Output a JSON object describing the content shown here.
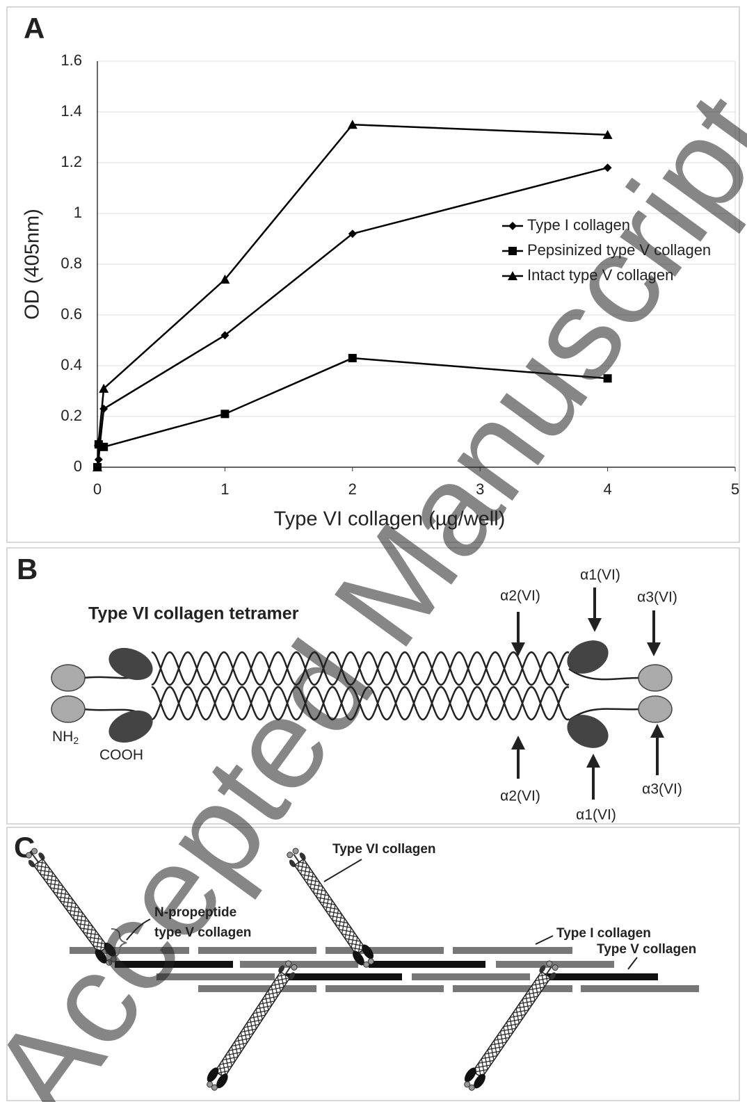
{
  "chart_data": {
    "type": "line",
    "panel_label": "A",
    "xlabel": "Type VI collagen (µg/well)",
    "ylabel": "OD (405nm)",
    "xlim": [
      0,
      5
    ],
    "xticks": [
      0,
      1,
      2,
      3,
      4,
      5
    ],
    "ylim": [
      0,
      1.6
    ],
    "yticks": [
      0,
      0.2,
      0.4,
      0.6,
      0.8,
      1,
      1.2,
      1.4,
      1.6
    ],
    "grid": true,
    "series": [
      {
        "name": "Type I collagen",
        "color": "#000000",
        "marker": "diamond",
        "x": [
          0,
          0.01,
          0.02,
          0.05,
          1,
          2,
          4
        ],
        "values": [
          0,
          0.03,
          0.09,
          0.23,
          0.52,
          0.92,
          1.18
        ]
      },
      {
        "name": "Pepsinized type V collagen",
        "color": "#000000",
        "marker": "square",
        "x": [
          0,
          0.01,
          0.05,
          1,
          2,
          4
        ],
        "values": [
          0,
          0.09,
          0.08,
          0.21,
          0.43,
          0.35
        ]
      },
      {
        "name": "Intact type V collagen",
        "color": "#000000",
        "marker": "triangle",
        "x": [
          0,
          0.01,
          0.05,
          1,
          2,
          4
        ],
        "values": [
          0,
          0.1,
          0.31,
          0.74,
          1.35,
          1.31
        ]
      }
    ]
  },
  "panel_b": {
    "label": "B",
    "title": "Type VI collagen tetramer",
    "nh2": {
      "main": "NH",
      "sub": "2"
    },
    "cooh": "COOH",
    "top_labels": [
      "α2(VI)",
      "α1(VI)",
      "α3(VI)"
    ],
    "bottom_labels": [
      "α2(VI)",
      "α1(VI)",
      "α3(VI)"
    ]
  },
  "panel_c": {
    "label": "C",
    "type_vi": "Type VI collagen",
    "n_propeptide": [
      "N-propeptide",
      "type V collagen"
    ],
    "type_i": "Type I collagen",
    "type_v": "Type V collagen"
  },
  "watermark": "Accepted Manuscript"
}
